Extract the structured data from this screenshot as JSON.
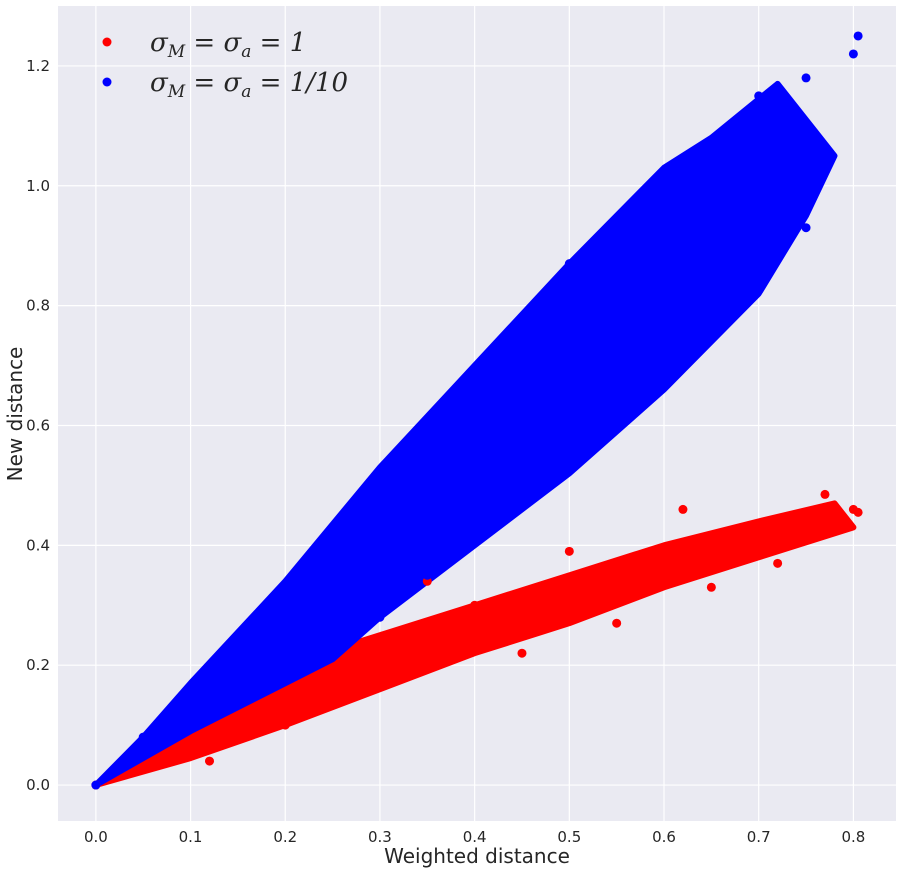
{
  "chart_data": {
    "type": "scatter",
    "title": "",
    "xlabel": "Weighted distance",
    "ylabel": "New distance",
    "xlim": [
      -0.04,
      0.845
    ],
    "ylim": [
      -0.06,
      1.3
    ],
    "xticks": [
      0.0,
      0.1,
      0.2,
      0.3,
      0.4,
      0.5,
      0.6,
      0.7,
      0.8
    ],
    "xtick_labels": [
      "0.0",
      "0.1",
      "0.2",
      "0.3",
      "0.4",
      "0.5",
      "0.6",
      "0.7",
      "0.8"
    ],
    "yticks": [
      0.0,
      0.2,
      0.4,
      0.6,
      0.8,
      1.0,
      1.2
    ],
    "ytick_labels": [
      "0.0",
      "0.2",
      "0.4",
      "0.6",
      "0.8",
      "1.0",
      "1.2"
    ],
    "grid": true,
    "legend_position": "top-left",
    "background": "#eaeaf2",
    "grid_color": "#ffffff",
    "series": [
      {
        "name": "σ_M = σ_a = 1",
        "legend_parts": [
          "σ",
          "M",
          " = σ",
          "a",
          " = 1"
        ],
        "color": "#ff0000",
        "points": [
          [
            0.0,
            0.0
          ],
          [
            0.05,
            0.03
          ],
          [
            0.1,
            0.06
          ],
          [
            0.15,
            0.09
          ],
          [
            0.2,
            0.12
          ],
          [
            0.25,
            0.15
          ],
          [
            0.3,
            0.18
          ],
          [
            0.35,
            0.21
          ],
          [
            0.4,
            0.24
          ],
          [
            0.45,
            0.27
          ],
          [
            0.5,
            0.3
          ],
          [
            0.55,
            0.33
          ],
          [
            0.6,
            0.36
          ],
          [
            0.65,
            0.39
          ],
          [
            0.7,
            0.42
          ],
          [
            0.75,
            0.44
          ],
          [
            0.8,
            0.46
          ],
          [
            0.805,
            0.455
          ],
          [
            0.77,
            0.485
          ],
          [
            0.62,
            0.46
          ],
          [
            0.5,
            0.39
          ],
          [
            0.4,
            0.3
          ],
          [
            0.35,
            0.34
          ],
          [
            0.3,
            0.19
          ],
          [
            0.25,
            0.14
          ],
          [
            0.2,
            0.1
          ],
          [
            0.12,
            0.04
          ],
          [
            0.45,
            0.22
          ],
          [
            0.55,
            0.27
          ],
          [
            0.65,
            0.33
          ],
          [
            0.72,
            0.37
          ]
        ]
      },
      {
        "name": "σ_M = σ_a = 1/10",
        "legend_parts": [
          "σ",
          "M",
          " = σ",
          "a",
          " = 1/10"
        ],
        "color": "#0000ff",
        "points": [
          [
            0.0,
            0.0
          ],
          [
            0.05,
            0.08
          ],
          [
            0.1,
            0.16
          ],
          [
            0.15,
            0.24
          ],
          [
            0.2,
            0.33
          ],
          [
            0.25,
            0.43
          ],
          [
            0.3,
            0.52
          ],
          [
            0.35,
            0.6
          ],
          [
            0.4,
            0.69
          ],
          [
            0.45,
            0.78
          ],
          [
            0.5,
            0.87
          ],
          [
            0.55,
            0.93
          ],
          [
            0.6,
            1.0
          ],
          [
            0.65,
            1.07
          ],
          [
            0.7,
            1.15
          ],
          [
            0.75,
            1.18
          ],
          [
            0.8,
            1.22
          ],
          [
            0.805,
            1.25
          ],
          [
            0.75,
            0.93
          ],
          [
            0.72,
            0.99
          ],
          [
            0.6,
            0.68
          ],
          [
            0.5,
            0.55
          ],
          [
            0.4,
            0.47
          ],
          [
            0.35,
            0.35
          ],
          [
            0.3,
            0.28
          ],
          [
            0.25,
            0.28
          ],
          [
            0.2,
            0.22
          ],
          [
            0.15,
            0.15
          ],
          [
            0.1,
            0.1
          ],
          [
            0.55,
            0.8
          ],
          [
            0.65,
            0.9
          ],
          [
            0.45,
            0.6
          ],
          [
            0.3,
            0.4
          ],
          [
            0.2,
            0.28
          ]
        ]
      }
    ]
  }
}
